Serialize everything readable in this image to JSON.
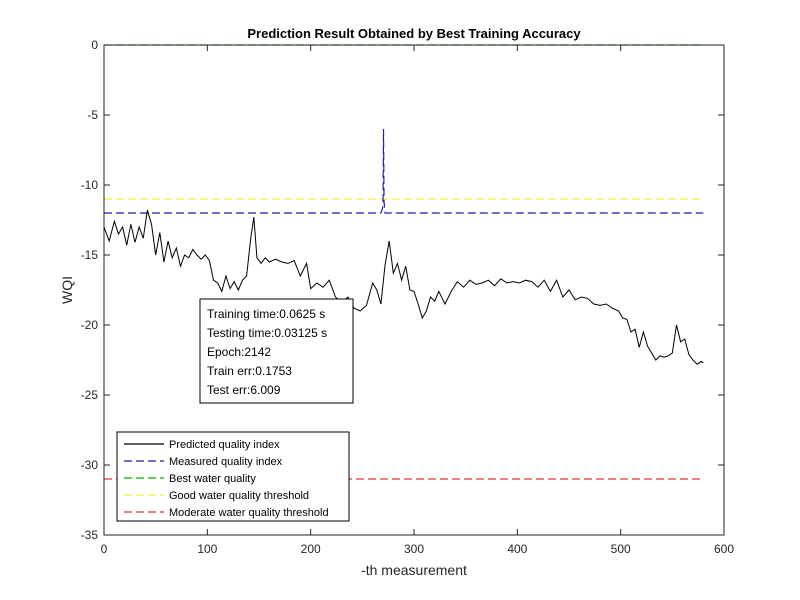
{
  "chart_data": {
    "type": "line",
    "title": "Prediction Result Obtained by Best Training Accuracy",
    "xlabel": "-th measurement",
    "ylabel": "WQI",
    "xlim": [
      0,
      600
    ],
    "ylim": [
      -35,
      0
    ],
    "xticks": [
      "0",
      "100",
      "200",
      "300",
      "400",
      "500",
      "600"
    ],
    "yticks": [
      "0",
      "-5",
      "-10",
      "-15",
      "-20",
      "-25",
      "-30",
      "-35"
    ],
    "grid": false,
    "legend_position": "bottom-left",
    "series": [
      {
        "name": "Predicted quality index",
        "color": "#000000",
        "style": "solid",
        "x": [
          0,
          5,
          10,
          14,
          18,
          22,
          26,
          30,
          34,
          38,
          42,
          46,
          50,
          54,
          58,
          62,
          66,
          70,
          74,
          78,
          82,
          86,
          90,
          94,
          98,
          102,
          106,
          110,
          114,
          118,
          122,
          126,
          130,
          134,
          138,
          142,
          145,
          148,
          152,
          156,
          160,
          166,
          172,
          178,
          184,
          190,
          196,
          200,
          206,
          212,
          218,
          224,
          230,
          236,
          242,
          248,
          254,
          260,
          264,
          268,
          272,
          276,
          280,
          284,
          288,
          292,
          296,
          300,
          304,
          308,
          312,
          316,
          320,
          324,
          330,
          336,
          342,
          348,
          354,
          360,
          366,
          372,
          378,
          384,
          390,
          396,
          402,
          408,
          414,
          420,
          426,
          432,
          438,
          444,
          450,
          456,
          462,
          468,
          474,
          480,
          486,
          492,
          498,
          502,
          506,
          510,
          514,
          518,
          522,
          526,
          530,
          534,
          538,
          542,
          546,
          550,
          554,
          558,
          562,
          566,
          570,
          574,
          578,
          580
        ],
        "y": [
          -13.0,
          -14.0,
          -12.6,
          -13.5,
          -13.0,
          -14.3,
          -12.8,
          -14.1,
          -13.0,
          -13.8,
          -11.8,
          -12.8,
          -15.0,
          -13.4,
          -15.5,
          -14.0,
          -15.2,
          -14.5,
          -15.8,
          -15.0,
          -15.2,
          -14.6,
          -15.0,
          -15.3,
          -15.0,
          -15.4,
          -16.8,
          -17.0,
          -17.6,
          -16.5,
          -17.4,
          -16.9,
          -17.5,
          -16.8,
          -16.5,
          -13.8,
          -12.3,
          -15.2,
          -15.6,
          -15.2,
          -15.5,
          -15.3,
          -15.5,
          -15.6,
          -15.4,
          -16.5,
          -15.6,
          -17.4,
          -17.0,
          -17.3,
          -16.8,
          -18.0,
          -18.4,
          -18.0,
          -18.8,
          -19.0,
          -18.6,
          -17.0,
          -17.5,
          -18.5,
          -15.7,
          -14.0,
          -16.3,
          -15.6,
          -16.8,
          -15.8,
          -17.5,
          -17.6,
          -18.5,
          -19.5,
          -19.0,
          -18.0,
          -18.3,
          -17.6,
          -18.5,
          -17.6,
          -16.9,
          -17.3,
          -16.8,
          -17.1,
          -17.0,
          -16.8,
          -17.2,
          -16.7,
          -17.0,
          -16.9,
          -17.0,
          -16.8,
          -16.9,
          -17.3,
          -16.8,
          -17.6,
          -16.8,
          -18.0,
          -17.5,
          -18.2,
          -18.0,
          -18.1,
          -18.5,
          -18.6,
          -18.5,
          -18.8,
          -19.0,
          -19.5,
          -19.6,
          -20.5,
          -20.3,
          -21.6,
          -20.5,
          -21.5,
          -22.0,
          -22.5,
          -22.2,
          -22.3,
          -22.2,
          -22.0,
          -20.0,
          -21.2,
          -21.0,
          -22.1,
          -22.5,
          -22.8,
          -22.6,
          -22.7
        ]
      },
      {
        "name": "Measured quality index",
        "color": "#1f1fb4",
        "style": "dashed",
        "x": [
          0,
          268,
          269,
          270,
          270.5,
          271,
          272,
          580
        ],
        "y": [
          -12,
          -12,
          -11.8,
          -11.5,
          -6.0,
          -11.2,
          -12,
          -12
        ]
      },
      {
        "name": "Best water quality",
        "color": "#00b400",
        "style": "dashed",
        "x": [
          0,
          580
        ],
        "y": [
          0,
          0
        ]
      },
      {
        "name": "Good water quality threshold",
        "color": "#f5f040",
        "style": "dashed",
        "x": [
          0,
          580
        ],
        "y": [
          -11,
          -11
        ]
      },
      {
        "name": "Moderate water quality threshold",
        "color": "#e83c32",
        "style": "dashed",
        "x": [
          0,
          580
        ],
        "y": [
          -31,
          -31
        ]
      }
    ],
    "annotations": [
      "Training time:0.0625 s",
      "Testing time:0.03125 s",
      "Epoch:2142",
      "Train err:0.1753",
      "Test err:6.009"
    ]
  }
}
